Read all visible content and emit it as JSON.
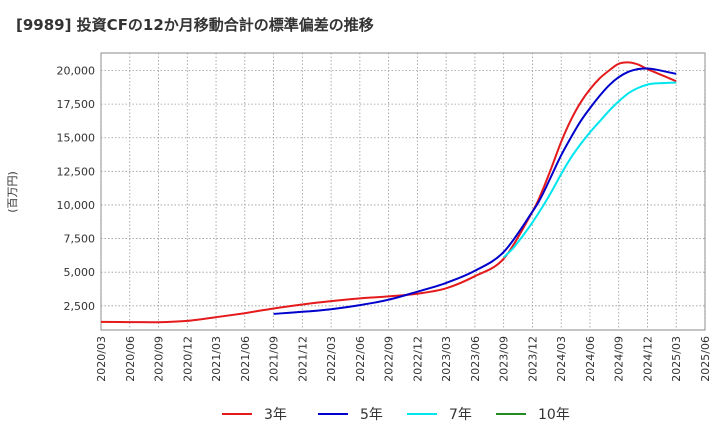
{
  "chart_data": {
    "type": "line",
    "title": "[9989]  投資CFの12か月移動合計の標準偏差の推移",
    "ylabel": "(百万円)",
    "xlabel": "",
    "ylim": [
      700,
      21300
    ],
    "y_ticks": [
      "2,500",
      "5,000",
      "7,500",
      "10,000",
      "12,500",
      "15,000",
      "17,500",
      "20,000"
    ],
    "y_tick_values": [
      2500,
      5000,
      7500,
      10000,
      12500,
      15000,
      17500,
      20000
    ],
    "x_ticks": [
      "2020/03",
      "2020/06",
      "2020/09",
      "2020/12",
      "2021/03",
      "2021/06",
      "2021/09",
      "2021/12",
      "2022/03",
      "2022/06",
      "2022/09",
      "2022/12",
      "2023/03",
      "2023/06",
      "2023/09",
      "2023/12",
      "2024/03",
      "2024/06",
      "2024/09",
      "2024/12",
      "2025/03",
      "2025/06"
    ],
    "grid": true,
    "legend_position": "bottom",
    "series": [
      {
        "name": "3年",
        "color": "#e41a1c",
        "points": [
          [
            "2020/03",
            1300
          ],
          [
            "2020/06",
            1290
          ],
          [
            "2020/09",
            1280
          ],
          [
            "2020/12",
            1380
          ],
          [
            "2021/03",
            1650
          ],
          [
            "2021/06",
            1950
          ],
          [
            "2021/09",
            2300
          ],
          [
            "2021/12",
            2600
          ],
          [
            "2022/03",
            2850
          ],
          [
            "2022/06",
            3050
          ],
          [
            "2022/09",
            3200
          ],
          [
            "2022/12",
            3400
          ],
          [
            "2023/03",
            3800
          ],
          [
            "2023/06",
            4700
          ],
          [
            "2023/09",
            6000
          ],
          [
            "2023/12",
            9500
          ],
          [
            "2024/01",
            11000
          ],
          [
            "2024/02",
            12800
          ],
          [
            "2024/03",
            14700
          ],
          [
            "2024/04",
            16300
          ],
          [
            "2024/05",
            17600
          ],
          [
            "2024/06",
            18600
          ],
          [
            "2024/07",
            19400
          ],
          [
            "2024/08",
            20000
          ],
          [
            "2024/09",
            20500
          ],
          [
            "2024/10",
            20600
          ],
          [
            "2024/11",
            20450
          ],
          [
            "2024/12",
            20100
          ],
          [
            "2025/01",
            19800
          ],
          [
            "2025/02",
            19500
          ],
          [
            "2025/03",
            19200
          ]
        ]
      },
      {
        "name": "5年",
        "color": "#0000cd",
        "points": [
          [
            "2021/09",
            1900
          ],
          [
            "2021/12",
            2050
          ],
          [
            "2022/03",
            2250
          ],
          [
            "2022/06",
            2550
          ],
          [
            "2022/09",
            2950
          ],
          [
            "2022/12",
            3550
          ],
          [
            "2023/03",
            4200
          ],
          [
            "2023/06",
            5100
          ],
          [
            "2023/09",
            6500
          ],
          [
            "2023/12",
            9500
          ],
          [
            "2024/01",
            10700
          ],
          [
            "2024/02",
            12200
          ],
          [
            "2024/03",
            13700
          ],
          [
            "2024/04",
            15000
          ],
          [
            "2024/05",
            16200
          ],
          [
            "2024/06",
            17200
          ],
          [
            "2024/07",
            18100
          ],
          [
            "2024/08",
            18900
          ],
          [
            "2024/09",
            19500
          ],
          [
            "2024/10",
            19900
          ],
          [
            "2024/11",
            20100
          ],
          [
            "2024/12",
            20150
          ],
          [
            "2025/01",
            20050
          ],
          [
            "2025/02",
            19900
          ],
          [
            "2025/03",
            19750
          ]
        ]
      },
      {
        "name": "7年",
        "color": "#00e5ee",
        "points": [
          [
            "2023/09",
            6100
          ],
          [
            "2023/10",
            6800
          ],
          [
            "2023/11",
            7700
          ],
          [
            "2023/12",
            8700
          ],
          [
            "2024/01",
            9800
          ],
          [
            "2024/02",
            11000
          ],
          [
            "2024/03",
            12300
          ],
          [
            "2024/04",
            13500
          ],
          [
            "2024/05",
            14500
          ],
          [
            "2024/06",
            15400
          ],
          [
            "2024/07",
            16200
          ],
          [
            "2024/08",
            17000
          ],
          [
            "2024/09",
            17700
          ],
          [
            "2024/10",
            18300
          ],
          [
            "2024/11",
            18700
          ],
          [
            "2024/12",
            18950
          ],
          [
            "2025/01",
            19050
          ],
          [
            "2025/02",
            19080
          ],
          [
            "2025/03",
            19100
          ]
        ]
      },
      {
        "name": "10年",
        "color": "#228b22",
        "points": []
      }
    ]
  }
}
